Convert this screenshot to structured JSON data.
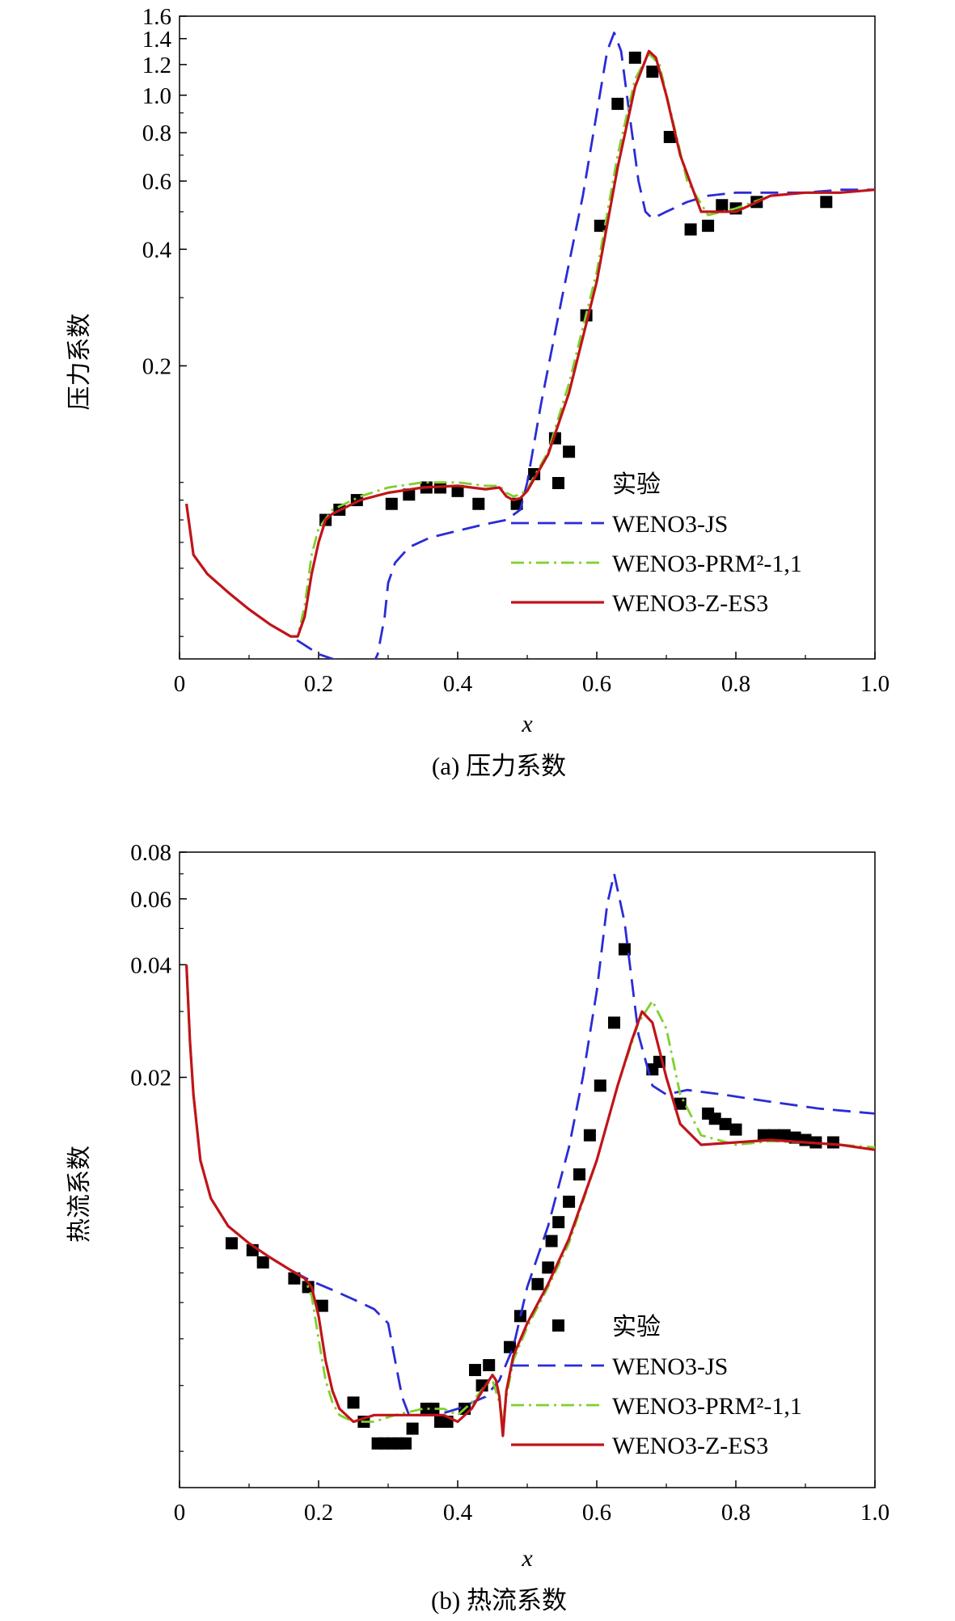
{
  "chart_data": [
    {
      "type": "line",
      "panel_caption": "(a) 压力系数",
      "xlabel": "x",
      "ylabel": "压力系数",
      "xlim": [
        0,
        1.0
      ],
      "ylim": [
        0.035,
        1.6
      ],
      "yscale": "log",
      "x_ticks": [
        "0",
        "0.2",
        "0.4",
        "0.6",
        "0.8",
        "1.0"
      ],
      "y_ticks": [
        "0.2",
        "0.4",
        "0.6",
        "0.8",
        "1.0",
        "1.2",
        "1.4",
        "1.6"
      ],
      "legend_position": "lower-right",
      "series": [
        {
          "name": "实验",
          "style": "markers",
          "color": "#000000",
          "x": [
            0.21,
            0.23,
            0.255,
            0.305,
            0.33,
            0.355,
            0.375,
            0.4,
            0.43,
            0.485,
            0.51,
            0.54,
            0.56,
            0.585,
            0.605,
            0.63,
            0.655,
            0.68,
            0.705,
            0.735,
            0.76,
            0.78,
            0.8,
            0.83,
            0.93
          ],
          "y": [
            0.08,
            0.085,
            0.09,
            0.088,
            0.093,
            0.097,
            0.097,
            0.095,
            0.088,
            0.088,
            0.105,
            0.13,
            0.12,
            0.27,
            0.46,
            0.95,
            1.25,
            1.15,
            0.78,
            0.45,
            0.46,
            0.52,
            0.51,
            0.53,
            0.53
          ]
        },
        {
          "name": "WENO3-JS",
          "style": "dashed",
          "color": "#2b2bd6",
          "x": [
            0.01,
            0.02,
            0.04,
            0.07,
            0.1,
            0.13,
            0.16,
            0.18,
            0.2,
            0.22,
            0.25,
            0.275,
            0.285,
            0.295,
            0.3,
            0.31,
            0.33,
            0.36,
            0.4,
            0.44,
            0.47,
            0.49,
            0.5,
            0.52,
            0.55,
            0.58,
            0.6,
            0.615,
            0.625,
            0.635,
            0.645,
            0.66,
            0.67,
            0.68,
            0.7,
            0.73,
            0.76,
            0.8,
            0.85,
            0.9,
            0.95,
            1.0
          ],
          "y": [
            0.088,
            0.065,
            0.058,
            0.052,
            0.047,
            0.043,
            0.04,
            0.038,
            0.036,
            0.035,
            0.034,
            0.033,
            0.036,
            0.045,
            0.055,
            0.062,
            0.068,
            0.072,
            0.075,
            0.078,
            0.08,
            0.085,
            0.1,
            0.16,
            0.3,
            0.55,
            0.9,
            1.3,
            1.45,
            1.3,
            0.95,
            0.6,
            0.5,
            0.48,
            0.5,
            0.53,
            0.55,
            0.56,
            0.56,
            0.56,
            0.57,
            0.57
          ]
        },
        {
          "name": "WENO3-PRM²-1,1",
          "style": "dashdot",
          "color": "#7fd02c",
          "x": [
            0.01,
            0.02,
            0.04,
            0.07,
            0.1,
            0.13,
            0.16,
            0.17,
            0.18,
            0.19,
            0.2,
            0.22,
            0.26,
            0.3,
            0.35,
            0.4,
            0.44,
            0.46,
            0.47,
            0.48,
            0.49,
            0.5,
            0.53,
            0.56,
            0.6,
            0.63,
            0.655,
            0.675,
            0.69,
            0.71,
            0.73,
            0.76,
            0.8,
            0.85,
            0.9,
            0.95,
            1.0
          ],
          "y": [
            0.088,
            0.065,
            0.058,
            0.052,
            0.047,
            0.043,
            0.04,
            0.04,
            0.048,
            0.065,
            0.076,
            0.085,
            0.092,
            0.097,
            0.1,
            0.1,
            0.098,
            0.098,
            0.094,
            0.092,
            0.093,
            0.096,
            0.12,
            0.18,
            0.35,
            0.7,
            1.1,
            1.28,
            1.2,
            0.85,
            0.6,
            0.49,
            0.51,
            0.55,
            0.56,
            0.56,
            0.57
          ]
        },
        {
          "name": "WENO3-Z-ES3",
          "style": "solid",
          "color": "#c0141a",
          "x": [
            0.01,
            0.02,
            0.04,
            0.07,
            0.1,
            0.13,
            0.16,
            0.17,
            0.18,
            0.19,
            0.2,
            0.21,
            0.22,
            0.26,
            0.3,
            0.35,
            0.4,
            0.44,
            0.46,
            0.47,
            0.48,
            0.49,
            0.5,
            0.53,
            0.56,
            0.6,
            0.63,
            0.655,
            0.675,
            0.685,
            0.7,
            0.72,
            0.75,
            0.8,
            0.85,
            0.9,
            0.95,
            1.0
          ],
          "y": [
            0.088,
            0.065,
            0.058,
            0.052,
            0.047,
            0.043,
            0.04,
            0.04,
            0.045,
            0.058,
            0.07,
            0.08,
            0.083,
            0.09,
            0.094,
            0.097,
            0.098,
            0.096,
            0.097,
            0.092,
            0.09,
            0.091,
            0.095,
            0.118,
            0.17,
            0.33,
            0.65,
            1.05,
            1.3,
            1.25,
            1.0,
            0.7,
            0.5,
            0.5,
            0.55,
            0.56,
            0.56,
            0.57
          ]
        }
      ]
    },
    {
      "type": "line",
      "panel_caption": "(b) 热流系数",
      "xlabel": "x",
      "ylabel": "热流系数",
      "xlim": [
        0,
        1.0
      ],
      "ylim": [
        0.0016,
        0.08
      ],
      "yscale": "log",
      "x_ticks": [
        "0",
        "0.2",
        "0.4",
        "0.6",
        "0.8",
        "1.0"
      ],
      "y_ticks": [
        "0.02",
        "0.04",
        "0.06",
        "0.08"
      ],
      "legend_position": "lower-right",
      "series": [
        {
          "name": "实验",
          "style": "markers",
          "color": "#000000",
          "x": [
            0.075,
            0.105,
            0.12,
            0.165,
            0.185,
            0.205,
            0.25,
            0.265,
            0.285,
            0.295,
            0.305,
            0.315,
            0.325,
            0.335,
            0.355,
            0.365,
            0.375,
            0.385,
            0.41,
            0.425,
            0.435,
            0.445,
            0.475,
            0.49,
            0.515,
            0.53,
            0.535,
            0.545,
            0.56,
            0.575,
            0.59,
            0.605,
            0.625,
            0.64,
            0.68,
            0.69,
            0.72,
            0.76,
            0.77,
            0.785,
            0.8,
            0.84,
            0.855,
            0.87,
            0.885,
            0.9,
            0.915,
            0.94
          ],
          "y": [
            0.0072,
            0.0069,
            0.0064,
            0.0058,
            0.0055,
            0.0049,
            0.0027,
            0.0024,
            0.0021,
            0.0021,
            0.0021,
            0.0021,
            0.0021,
            0.0023,
            0.0026,
            0.0026,
            0.0024,
            0.0024,
            0.0026,
            0.0033,
            0.003,
            0.0034,
            0.0038,
            0.0046,
            0.0056,
            0.0062,
            0.0073,
            0.0082,
            0.0093,
            0.011,
            0.014,
            0.019,
            0.028,
            0.044,
            0.021,
            0.022,
            0.017,
            0.016,
            0.0155,
            0.015,
            0.0145,
            0.014,
            0.014,
            0.014,
            0.0138,
            0.0136,
            0.0134,
            0.0134
          ]
        },
        {
          "name": "WENO3-JS",
          "style": "dashed",
          "color": "#2b2bd6",
          "x": [
            0.01,
            0.015,
            0.02,
            0.03,
            0.045,
            0.07,
            0.1,
            0.13,
            0.16,
            0.19,
            0.22,
            0.25,
            0.28,
            0.3,
            0.31,
            0.32,
            0.33,
            0.34,
            0.37,
            0.4,
            0.44,
            0.46,
            0.48,
            0.5,
            0.53,
            0.56,
            0.58,
            0.6,
            0.615,
            0.625,
            0.64,
            0.66,
            0.68,
            0.7,
            0.73,
            0.78,
            0.85,
            0.92,
            1.0
          ],
          "y": [
            0.04,
            0.025,
            0.018,
            0.012,
            0.0095,
            0.008,
            0.0072,
            0.0066,
            0.0061,
            0.0057,
            0.0054,
            0.0051,
            0.0048,
            0.0044,
            0.0035,
            0.0028,
            0.0025,
            0.0025,
            0.0025,
            0.0026,
            0.0028,
            0.0031,
            0.0038,
            0.0055,
            0.008,
            0.013,
            0.02,
            0.034,
            0.058,
            0.07,
            0.052,
            0.026,
            0.019,
            0.018,
            0.0185,
            0.018,
            0.0172,
            0.0165,
            0.016
          ]
        },
        {
          "name": "WENO3-PRM²-1,1",
          "style": "dashdot",
          "color": "#7fd02c",
          "x": [
            0.01,
            0.015,
            0.02,
            0.03,
            0.045,
            0.07,
            0.1,
            0.13,
            0.16,
            0.18,
            0.19,
            0.2,
            0.21,
            0.22,
            0.23,
            0.25,
            0.28,
            0.31,
            0.35,
            0.38,
            0.4,
            0.42,
            0.44,
            0.45,
            0.46,
            0.465,
            0.47,
            0.48,
            0.5,
            0.53,
            0.56,
            0.6,
            0.63,
            0.66,
            0.68,
            0.7,
            0.72,
            0.75,
            0.8,
            0.85,
            0.9,
            0.95,
            1.0
          ],
          "y": [
            0.04,
            0.025,
            0.018,
            0.012,
            0.0095,
            0.008,
            0.0072,
            0.0066,
            0.0061,
            0.0058,
            0.0052,
            0.004,
            0.0031,
            0.0027,
            0.0025,
            0.0024,
            0.0024,
            0.0025,
            0.0026,
            0.0026,
            0.0025,
            0.0027,
            0.003,
            0.0031,
            0.0027,
            0.0024,
            0.0028,
            0.0035,
            0.0043,
            0.0055,
            0.0072,
            0.012,
            0.019,
            0.028,
            0.032,
            0.027,
            0.018,
            0.014,
            0.0132,
            0.0135,
            0.0134,
            0.0132,
            0.013
          ]
        },
        {
          "name": "WENO3-Z-ES3",
          "style": "solid",
          "color": "#c0141a",
          "x": [
            0.01,
            0.015,
            0.02,
            0.03,
            0.045,
            0.07,
            0.1,
            0.13,
            0.16,
            0.18,
            0.19,
            0.2,
            0.21,
            0.22,
            0.23,
            0.25,
            0.28,
            0.31,
            0.35,
            0.38,
            0.4,
            0.42,
            0.44,
            0.45,
            0.455,
            0.46,
            0.465,
            0.47,
            0.48,
            0.5,
            0.53,
            0.56,
            0.6,
            0.63,
            0.65,
            0.665,
            0.68,
            0.7,
            0.72,
            0.75,
            0.8,
            0.85,
            0.9,
            0.95,
            1.0
          ],
          "y": [
            0.04,
            0.025,
            0.018,
            0.012,
            0.0095,
            0.008,
            0.0072,
            0.0066,
            0.0061,
            0.0058,
            0.0055,
            0.0046,
            0.0035,
            0.0029,
            0.0026,
            0.0024,
            0.0025,
            0.0025,
            0.0025,
            0.0025,
            0.0024,
            0.0026,
            0.003,
            0.0032,
            0.0031,
            0.0028,
            0.0022,
            0.0029,
            0.0036,
            0.0044,
            0.0056,
            0.0074,
            0.012,
            0.019,
            0.025,
            0.03,
            0.028,
            0.02,
            0.015,
            0.0132,
            0.0134,
            0.0136,
            0.0134,
            0.0132,
            0.0128
          ]
        }
      ]
    }
  ]
}
